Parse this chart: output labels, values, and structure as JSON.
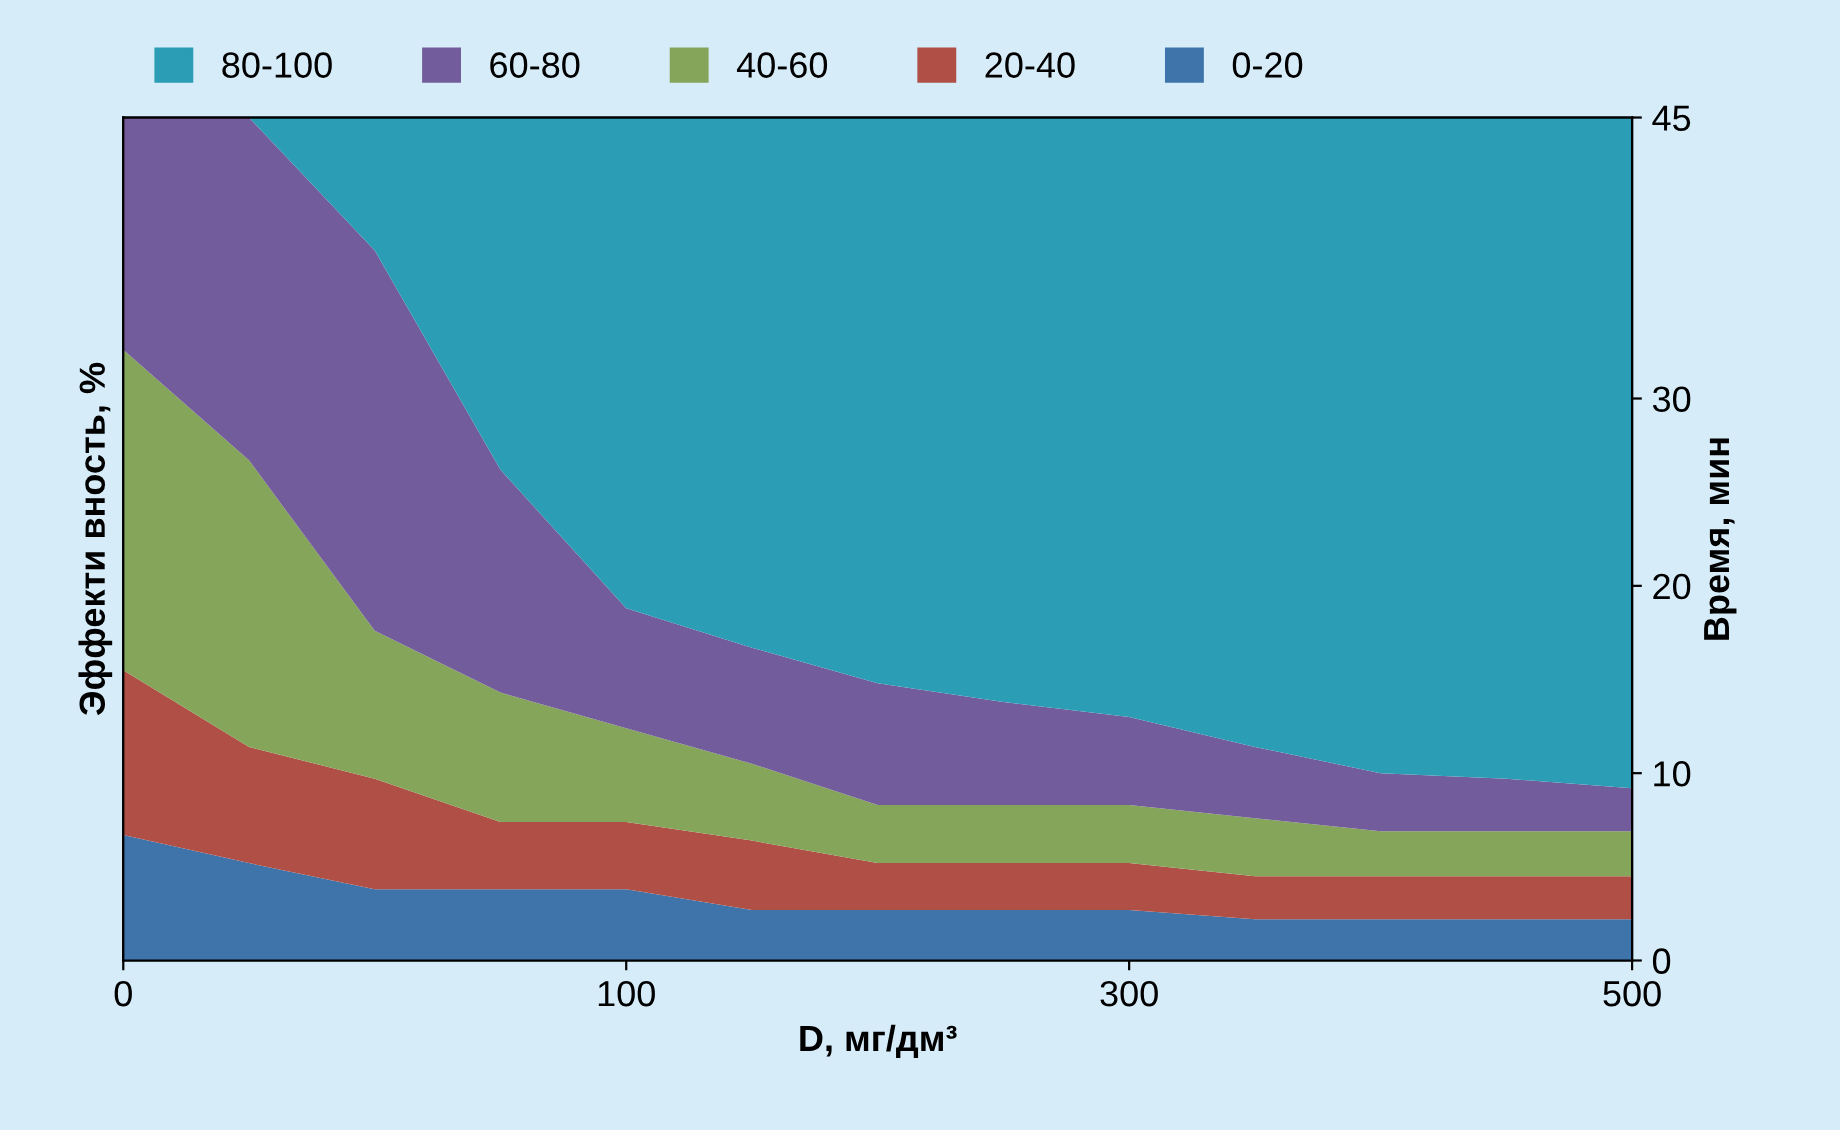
{
  "chart_data": {
    "type": "area",
    "stacked": true,
    "xlabel": "D, мг/дм³",
    "ylabel": "Эффекти вность, %",
    "y2label": "Время, мин",
    "categories": [
      "0",
      null,
      null,
      null,
      "100",
      null,
      null,
      null,
      "300",
      null,
      null,
      null,
      "500"
    ],
    "y2lim": [
      0,
      45
    ],
    "y2ticks": [
      0,
      10,
      20,
      30,
      45
    ],
    "grid": false,
    "legend": "top",
    "series": [
      {
        "name": "0-20",
        "color": "#3f74ab",
        "axis": "y2",
        "values": [
          6.7,
          5.2,
          3.8,
          3.8,
          3.8,
          2.7,
          2.7,
          2.7,
          2.7,
          2.2,
          2.2,
          2.2,
          2.2
        ]
      },
      {
        "name": "20-40",
        "color": "#b04f46",
        "axis": "y2",
        "values": [
          8.8,
          6.2,
          5.9,
          3.6,
          3.6,
          3.7,
          2.5,
          2.5,
          2.5,
          2.3,
          2.3,
          2.3,
          2.3
        ]
      },
      {
        "name": "40-60",
        "color": "#85a55a",
        "axis": "y2",
        "values": [
          17.1,
          15.3,
          7.9,
          6.9,
          5.0,
          4.1,
          3.1,
          3.1,
          3.1,
          3.1,
          2.4,
          2.4,
          2.4
        ]
      },
      {
        "name": "60-80",
        "color": "#735c9b",
        "axis": "y2",
        "values": [
          12.4,
          18.3,
          20.3,
          11.9,
          6.4,
          6.2,
          6.5,
          5.5,
          4.7,
          3.8,
          3.1,
          2.8,
          2.3
        ]
      },
      {
        "name": "80-100",
        "color": "#2b9db5",
        "axis": "y2",
        "values": [
          0,
          0,
          7.1,
          18.8,
          26.2,
          28.3,
          30.2,
          31.2,
          32.0,
          33.6,
          35.0,
          35.3,
          35.8
        ]
      }
    ]
  }
}
